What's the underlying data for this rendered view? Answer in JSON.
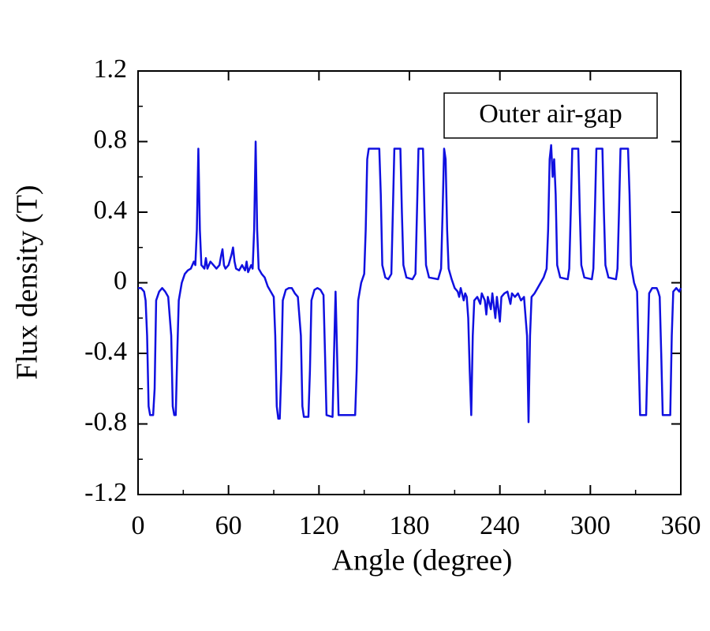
{
  "chart_data": {
    "type": "line",
    "xlabel": "Angle (degree)",
    "ylabel": "Flux density (T)",
    "annotation": "Outer air-gap",
    "color": "#1010e0",
    "xlim": [
      0,
      360
    ],
    "xticks": [
      0,
      60,
      120,
      180,
      240,
      300,
      360
    ],
    "ylim": [
      -1.2,
      1.2
    ],
    "yticks": [
      -1.2,
      -0.8,
      -0.4,
      0,
      0.4,
      0.8,
      1.2
    ],
    "x": [
      0,
      2,
      4,
      5,
      6,
      7,
      8,
      10,
      11,
      12,
      14,
      16,
      18,
      20,
      22,
      23,
      24,
      25,
      26,
      27,
      29,
      31,
      33,
      35,
      37,
      38,
      39,
      40,
      41,
      42,
      44,
      45,
      46,
      48,
      50,
      52,
      54,
      55,
      56,
      57,
      58,
      60,
      62,
      63,
      64,
      65,
      67,
      69,
      71,
      72,
      73,
      75,
      76,
      77,
      78,
      79,
      80,
      82,
      84,
      86,
      88,
      90,
      91,
      92,
      93,
      94,
      95,
      96,
      98,
      100,
      102,
      104,
      106,
      108,
      109,
      110,
      113,
      114,
      115,
      117,
      119,
      121,
      123,
      124,
      125,
      129,
      130,
      131,
      132,
      133,
      144,
      145,
      146,
      148,
      150,
      151,
      152,
      153,
      160,
      161,
      162,
      164,
      166,
      168,
      169,
      170,
      174,
      175,
      176,
      178,
      182,
      184,
      185,
      186,
      189,
      190,
      191,
      193,
      199,
      201,
      202,
      203,
      204,
      205,
      206,
      208,
      210,
      212,
      213,
      214,
      216,
      217,
      218,
      219,
      220,
      221,
      222,
      223,
      225,
      227,
      228,
      230,
      231,
      232,
      234,
      235,
      237,
      238,
      240,
      241,
      243,
      245,
      247,
      248,
      250,
      252,
      254,
      256,
      258,
      259,
      260,
      261,
      263,
      265,
      267,
      269,
      271,
      272,
      273,
      274,
      275,
      276,
      277,
      278,
      280,
      285,
      286,
      287,
      288,
      292,
      293,
      294,
      296,
      301,
      302,
      303,
      304,
      308,
      309,
      310,
      312,
      317,
      318,
      319,
      320,
      325,
      326,
      327,
      329,
      331,
      332,
      333,
      337,
      338,
      339,
      341,
      344,
      345,
      346,
      347,
      348,
      353,
      354,
      355,
      357,
      359,
      360
    ],
    "values": [
      -0.03,
      -0.03,
      -0.05,
      -0.1,
      -0.3,
      -0.7,
      -0.75,
      -0.75,
      -0.6,
      -0.1,
      -0.05,
      -0.03,
      -0.05,
      -0.08,
      -0.3,
      -0.7,
      -0.75,
      -0.75,
      -0.4,
      -0.1,
      0,
      0.05,
      0.07,
      0.08,
      0.12,
      0.1,
      0.3,
      0.76,
      0.3,
      0.1,
      0.08,
      0.14,
      0.08,
      0.12,
      0.1,
      0.08,
      0.1,
      0.15,
      0.19,
      0.1,
      0.08,
      0.1,
      0.16,
      0.2,
      0.12,
      0.08,
      0.07,
      0.1,
      0.07,
      0.12,
      0.06,
      0.1,
      0.08,
      0.3,
      0.8,
      0.3,
      0.08,
      0.05,
      0.03,
      -0.02,
      -0.05,
      -0.08,
      -0.3,
      -0.7,
      -0.77,
      -0.77,
      -0.5,
      -0.1,
      -0.04,
      -0.03,
      -0.03,
      -0.06,
      -0.08,
      -0.3,
      -0.7,
      -0.76,
      -0.76,
      -0.5,
      -0.1,
      -0.04,
      -0.03,
      -0.04,
      -0.07,
      -0.4,
      -0.75,
      -0.76,
      -0.4,
      -0.05,
      -0.4,
      -0.75,
      -0.75,
      -0.5,
      -0.1,
      0,
      0.05,
      0.3,
      0.7,
      0.76,
      0.76,
      0.5,
      0.1,
      0.03,
      0.02,
      0.05,
      0.4,
      0.76,
      0.76,
      0.4,
      0.1,
      0.03,
      0.02,
      0.05,
      0.4,
      0.76,
      0.76,
      0.4,
      0.1,
      0.03,
      0.02,
      0.08,
      0.4,
      0.76,
      0.7,
      0.3,
      0.08,
      0.02,
      -0.03,
      -0.05,
      -0.08,
      -0.03,
      -0.1,
      -0.06,
      -0.08,
      -0.2,
      -0.5,
      -0.75,
      -0.3,
      -0.1,
      -0.08,
      -0.12,
      -0.06,
      -0.1,
      -0.18,
      -0.08,
      -0.15,
      -0.06,
      -0.2,
      -0.08,
      -0.22,
      -0.08,
      -0.06,
      -0.05,
      -0.12,
      -0.06,
      -0.08,
      -0.06,
      -0.1,
      -0.08,
      -0.3,
      -0.79,
      -0.3,
      -0.08,
      -0.06,
      -0.03,
      0,
      0.03,
      0.08,
      0.3,
      0.7,
      0.78,
      0.6,
      0.7,
      0.5,
      0.1,
      0.03,
      0.02,
      0.08,
      0.4,
      0.76,
      0.76,
      0.4,
      0.1,
      0.03,
      0.02,
      0.08,
      0.4,
      0.76,
      0.76,
      0.4,
      0.1,
      0.03,
      0.02,
      0.08,
      0.4,
      0.76,
      0.76,
      0.5,
      0.1,
      0,
      -0.05,
      -0.4,
      -0.75,
      -0.75,
      -0.4,
      -0.06,
      -0.03,
      -0.03,
      -0.05,
      -0.08,
      -0.4,
      -0.75,
      -0.75,
      -0.3,
      -0.05,
      -0.03,
      -0.05,
      -0.03
    ]
  }
}
